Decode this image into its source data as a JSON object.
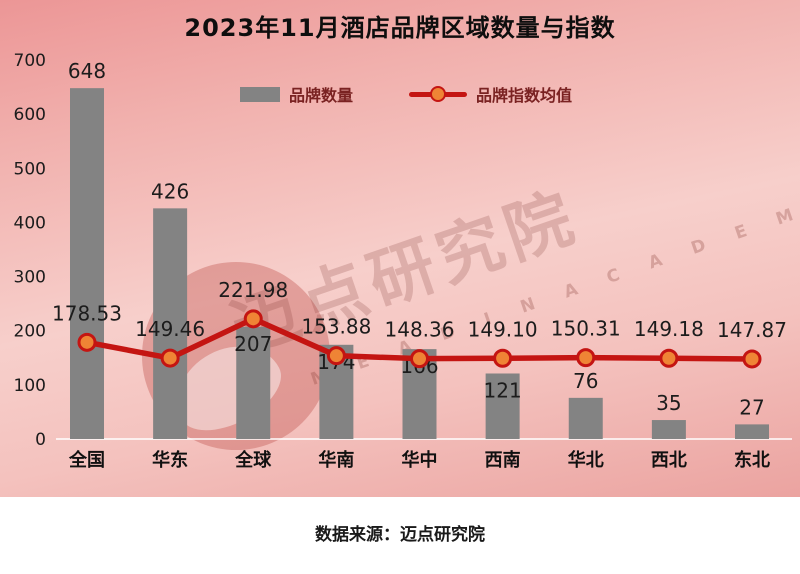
{
  "title": "2023年11月酒店品牌区域数量与指数",
  "legend": {
    "bars_label": "品牌数量",
    "line_label": "品牌指数均值"
  },
  "watermark": {
    "text": "迈点研究院",
    "subtext": "M E A D I N   A C A D E M Y"
  },
  "source": "数据来源：迈点研究院",
  "colors": {
    "bar": "#838383",
    "line": "#c41512",
    "marker_fill": "#ef8435",
    "marker_stroke": "#c41512",
    "label_text": "#1c1c1c",
    "axis_text": "#1c1c1c",
    "legend_text": "#7a2222",
    "background_top": "#ec9696",
    "background_mid": "#f7cfcb",
    "background_bottom": "#eba3a0",
    "axis_line": "rgba(255,255,255,0.75)"
  },
  "chart_data": {
    "type": "bar",
    "title": "2023年11月酒店品牌区域数量与指数",
    "categories": [
      "全国",
      "华东",
      "全球",
      "华南",
      "华中",
      "西南",
      "华北",
      "西北",
      "东北"
    ],
    "series": [
      {
        "name": "品牌数量",
        "type": "bar",
        "values": [
          648,
          426,
          207,
          174,
          166,
          121,
          76,
          35,
          27
        ]
      },
      {
        "name": "品牌指数均值",
        "type": "line",
        "values": [
          178.53,
          149.46,
          221.98,
          153.88,
          148.36,
          149.1,
          150.31,
          149.18,
          147.87
        ],
        "labels": [
          "178.53",
          "149.46",
          "221.98",
          "153.88",
          "148.36",
          "149.10",
          "150.31",
          "149.18",
          "147.87"
        ]
      }
    ],
    "xlabel": "",
    "ylabel": "",
    "y_axis": {
      "min": 0,
      "max": 700,
      "ticks": [
        0,
        100,
        200,
        300,
        400,
        500,
        600,
        700
      ]
    },
    "grid": false,
    "legend_position": "top"
  }
}
